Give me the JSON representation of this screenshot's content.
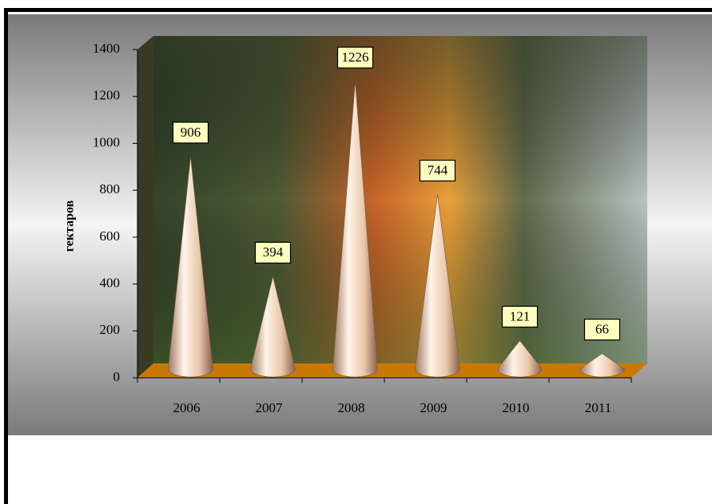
{
  "chart_data": {
    "type": "cone",
    "y_label": "гектаров",
    "categories": [
      "2006",
      "2007",
      "2008",
      "2009",
      "2010",
      "2011"
    ],
    "values": [
      906,
      394,
      1226,
      744,
      121,
      66
    ],
    "color": "#f2d6bd",
    "floor_color": "#c87a00",
    "ylim": [
      0,
      1400
    ],
    "yticks": [
      0,
      200,
      400,
      600,
      800,
      1000,
      1200,
      1400
    ]
  }
}
